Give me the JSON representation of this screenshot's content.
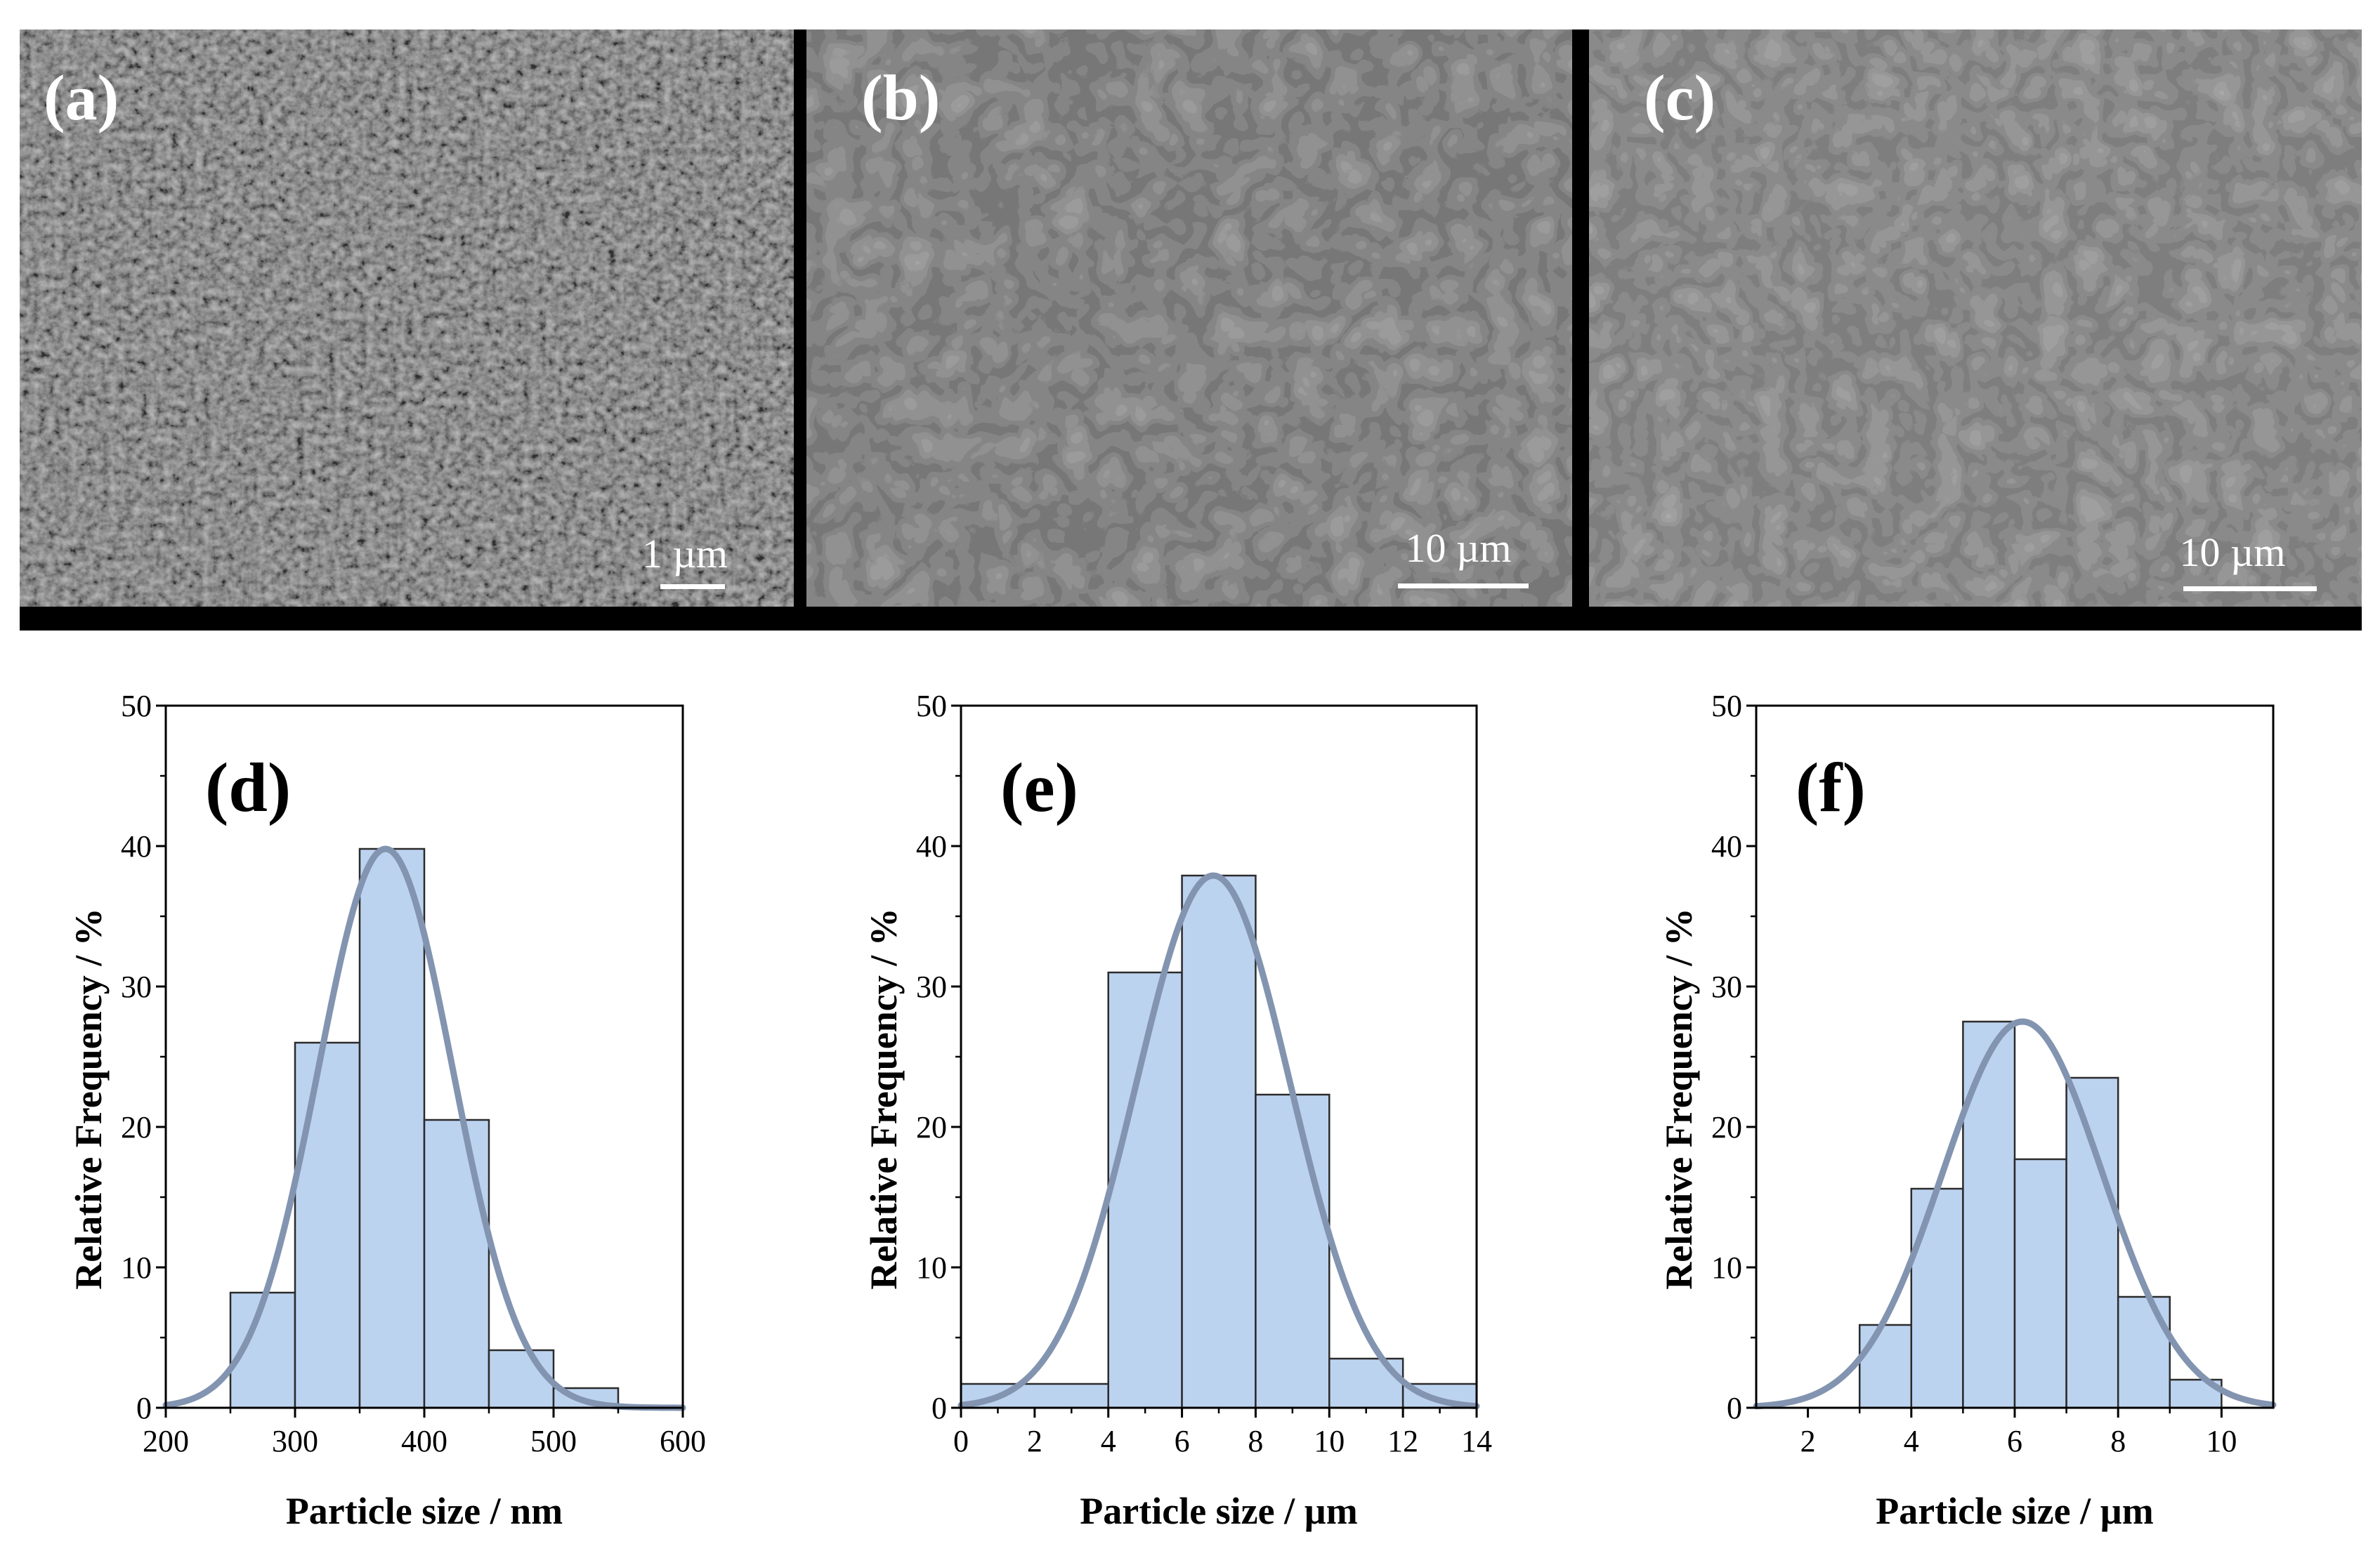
{
  "sem_panels": [
    {
      "label": "(a)",
      "scale_label": "1 µm"
    },
    {
      "label": "(b)",
      "scale_label": "10 µm"
    },
    {
      "label": "(c)",
      "scale_label": "10 µm"
    }
  ],
  "colors": {
    "bar_fill": "#bcd3f0",
    "bar_edge": "#2b2b2b",
    "curve": "#8294b0",
    "sem_dark": "#454545",
    "sem_light": "#9a9a9a"
  },
  "chart_data": [
    {
      "type": "bar",
      "panel": "(d)",
      "xlabel": "Particle size / nm",
      "ylabel": "Relative Frequency / %",
      "xlim": [
        200,
        600
      ],
      "ylim": [
        0,
        50
      ],
      "xticks": [
        200,
        300,
        400,
        500,
        600
      ],
      "yticks": [
        0,
        10,
        20,
        30,
        40,
        50
      ],
      "bins": [
        [
          250,
          300
        ],
        [
          300,
          350
        ],
        [
          350,
          400
        ],
        [
          400,
          450
        ],
        [
          450,
          500
        ],
        [
          500,
          550
        ]
      ],
      "values": [
        8.2,
        26,
        39.8,
        20.5,
        4.1,
        1.4
      ],
      "fit": {
        "type": "gaussian",
        "mean": 370,
        "sigma": 52,
        "peak": 39.8
      }
    },
    {
      "type": "bar",
      "panel": "(e)",
      "xlabel": "Particle size / µm",
      "ylabel": "Relative Frequency / %",
      "xlim": [
        0,
        14
      ],
      "ylim": [
        0,
        50
      ],
      "xticks": [
        0,
        2,
        4,
        6,
        8,
        10,
        12,
        14
      ],
      "yticks": [
        0,
        10,
        20,
        30,
        40,
        50
      ],
      "bins": [
        [
          0,
          4
        ],
        [
          4,
          6
        ],
        [
          6,
          8
        ],
        [
          8,
          10
        ],
        [
          10,
          12
        ],
        [
          12,
          14
        ]
      ],
      "values": [
        1.7,
        31,
        37.9,
        22.3,
        3.5,
        1.7
      ],
      "fit": {
        "type": "gaussian",
        "mean": 6.85,
        "sigma": 2.1,
        "peak": 37.9
      }
    },
    {
      "type": "bar",
      "panel": "(f)",
      "xlabel": "Particle size / µm",
      "ylabel": "Relative Frequency / %",
      "xlim": [
        1,
        11
      ],
      "ylim": [
        0,
        50
      ],
      "xticks": [
        2,
        4,
        6,
        8,
        10
      ],
      "yticks": [
        0,
        10,
        20,
        30,
        40,
        50
      ],
      "bins": [
        [
          3,
          4
        ],
        [
          4,
          5
        ],
        [
          5,
          6
        ],
        [
          6,
          7
        ],
        [
          7,
          8
        ],
        [
          8,
          9
        ],
        [
          9,
          10
        ]
      ],
      "values": [
        5.9,
        15.6,
        27.5,
        17.7,
        23.5,
        7.9,
        2.0
      ],
      "fit": {
        "type": "gaussian",
        "mean": 6.15,
        "sigma": 1.55,
        "peak": 27.5
      }
    }
  ]
}
